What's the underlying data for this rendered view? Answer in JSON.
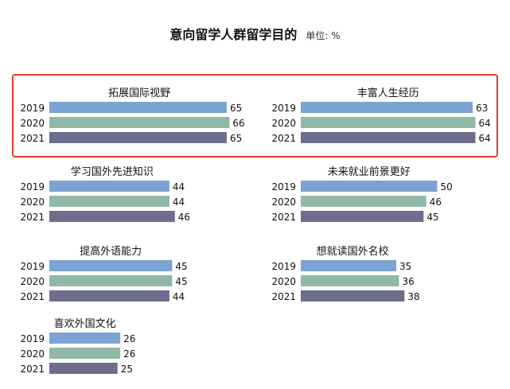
{
  "title": "意向留学人群留学目的",
  "unit": "单位: %",
  "colors": {
    "2019": "#7ba3d4",
    "2020": "#8fb8a6",
    "2021": "#6e6d8c",
    "highlight": "#e23b2e"
  },
  "chart_data": {
    "type": "bar",
    "orientation": "horizontal",
    "title": "意向留学人群留学目的",
    "unit": "单位: %",
    "series": [
      {
        "name": "2019"
      },
      {
        "name": "2020"
      },
      {
        "name": "2021"
      }
    ],
    "panels": [
      {
        "name": "拓展国际视野",
        "values": [
          65,
          66,
          65
        ],
        "highlighted": true
      },
      {
        "name": "丰富人生经历",
        "values": [
          63,
          64,
          64
        ],
        "highlighted": true
      },
      {
        "name": "学习国外先进知识",
        "values": [
          44,
          44,
          46
        ]
      },
      {
        "name": "未来就业前景更好",
        "values": [
          50,
          46,
          45
        ]
      },
      {
        "name": "提高外语能力",
        "values": [
          45,
          45,
          44
        ]
      },
      {
        "name": "想就读国外名校",
        "values": [
          35,
          36,
          38
        ]
      },
      {
        "name": "喜欢外国文化",
        "values": [
          26,
          26,
          25
        ]
      }
    ]
  }
}
